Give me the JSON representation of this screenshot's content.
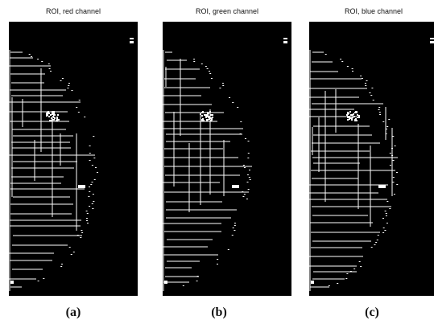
{
  "panels": [
    {
      "title": "ROI, red channel",
      "caption": "(a)"
    },
    {
      "title": "ROI, green channel",
      "caption": "(b)"
    },
    {
      "title": "ROI, blue channel",
      "caption": "(c)"
    }
  ],
  "colors": {
    "background": "#000000",
    "structure": "#ffffff"
  }
}
